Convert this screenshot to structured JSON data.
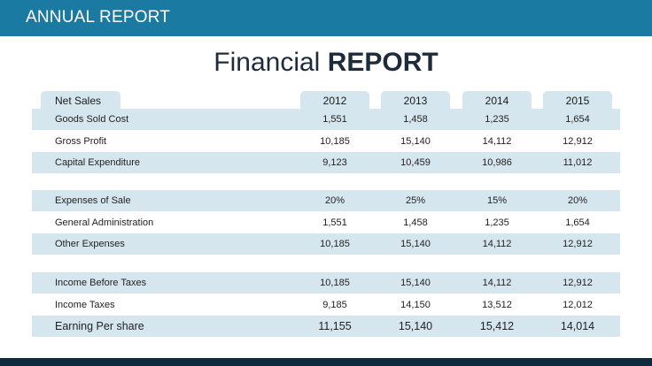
{
  "header": {
    "title": "ANNUAL REPORT"
  },
  "heading": {
    "light": "Financial",
    "bold": "REPORT"
  },
  "table": {
    "label_tab": "Net Sales",
    "years": [
      "2012",
      "2013",
      "2014",
      "2015"
    ],
    "rows": [
      {
        "label": "Goods Sold Cost",
        "values": [
          "1,551",
          "1,458",
          "1,235",
          "1,654"
        ]
      },
      {
        "label": "Gross Profit",
        "values": [
          "10,185",
          "15,140",
          "14,112",
          "12,912"
        ]
      },
      {
        "label": "Capital Expenditure",
        "values": [
          "9,123",
          "10,459",
          "10,986",
          "11,012"
        ]
      },
      {
        "label": "Expenses of Sale",
        "values": [
          "20%",
          "25%",
          "15%",
          "20%"
        ]
      },
      {
        "label": "General Administration",
        "values": [
          "1,551",
          "1,458",
          "1,235",
          "1,654"
        ]
      },
      {
        "label": "Other Expenses",
        "values": [
          "10,185",
          "15,140",
          "14,112",
          "12,912"
        ]
      },
      {
        "label": "Income Before Taxes",
        "values": [
          "10,185",
          "15,140",
          "14,112",
          "12,912"
        ]
      },
      {
        "label": "Income Taxes",
        "values": [
          "9,185",
          "14,150",
          "13,512",
          "12,012"
        ]
      },
      {
        "label": "Earning Per share",
        "values": [
          "11,155",
          "15,140",
          "15,412",
          "14,014"
        ]
      }
    ]
  },
  "colors": {
    "header_bar": "#1a7aa2",
    "row_shade": "#d6e6ee",
    "footer_bar": "#0e2a3c"
  }
}
